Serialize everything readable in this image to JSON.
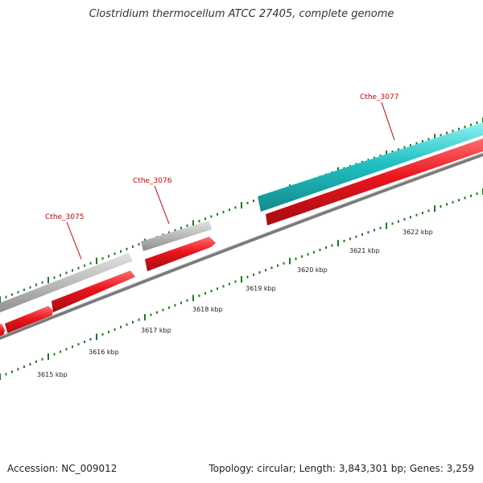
{
  "title": "Clostridium thermocellum ATCC 27405, complete genome",
  "footer": {
    "accession": "Accession: NC_009012",
    "topology": "Topology: circular; Length: 3,843,301 bp; Genes: 3,259"
  },
  "colors": {
    "backbone": "#7a7a7a",
    "forward_feature": "#b9b9b9",
    "reverse_feature": "#e8151c",
    "highlight_feature": "#22c1c3",
    "gc_ticks": "#1f7a1f",
    "gene_label": "#cc0000"
  },
  "scale_labels": [
    "3615 kbp",
    "3616 kbp",
    "3617 kbp",
    "3618 kbp",
    "3619 kbp",
    "3620 kbp",
    "3621 kbp",
    "3622 kbp"
  ],
  "gene_labels": [
    "Cthe_3075",
    "Cthe_3076",
    "Cthe_3077"
  ]
}
